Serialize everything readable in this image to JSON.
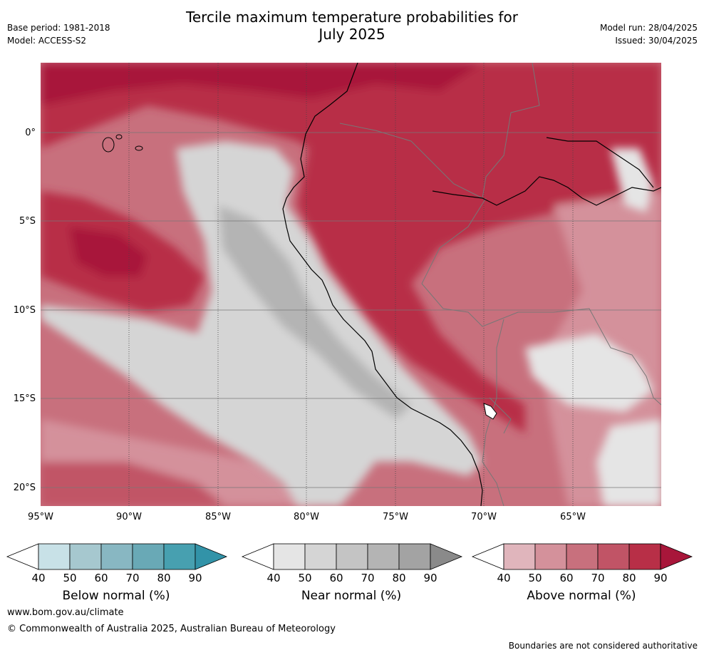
{
  "header": {
    "title_line1": "Tercile maximum temperature probabilities for",
    "title_line2": "July 2025",
    "base_period": "Base period: 1981-2018",
    "model": "Model: ACCESS-S2",
    "model_run": "Model run: 28/04/2025",
    "issued": "Issued: 30/04/2025"
  },
  "map": {
    "lat_labels": [
      "0°",
      "5°S",
      "10°S",
      "15°S",
      "20°S"
    ],
    "lon_labels": [
      "95°W",
      "90°W",
      "85°W",
      "80°W",
      "75°W",
      "70°W",
      "65°W"
    ]
  },
  "colorbars": [
    {
      "title": "Below normal (%)",
      "ticks": [
        "40",
        "50",
        "60",
        "70",
        "80",
        "90"
      ],
      "colors": [
        "#ffffff",
        "#c8e1e7",
        "#a6c8cf",
        "#88b7c2",
        "#69a9b6",
        "#47a0b0",
        "#3293a8"
      ]
    },
    {
      "title": "Near normal (%)",
      "ticks": [
        "40",
        "50",
        "60",
        "70",
        "80",
        "90"
      ],
      "colors": [
        "#ffffff",
        "#e5e5e5",
        "#d5d5d5",
        "#c4c4c4",
        "#b4b4b4",
        "#a3a3a3",
        "#8a8a8a"
      ]
    },
    {
      "title": "Above normal (%)",
      "ticks": [
        "40",
        "50",
        "60",
        "70",
        "80",
        "90"
      ],
      "colors": [
        "#ffffff",
        "#e0b5bc",
        "#d4919b",
        "#c8707d",
        "#c15466",
        "#b82f47",
        "#a8163a"
      ]
    }
  ],
  "footer": {
    "url": "www.bom.gov.au/climate",
    "copyright": "© Commonwealth of Australia 2025, Australian Bureau of Meteorology",
    "disclaimer": "Boundaries are not considered authoritative"
  }
}
